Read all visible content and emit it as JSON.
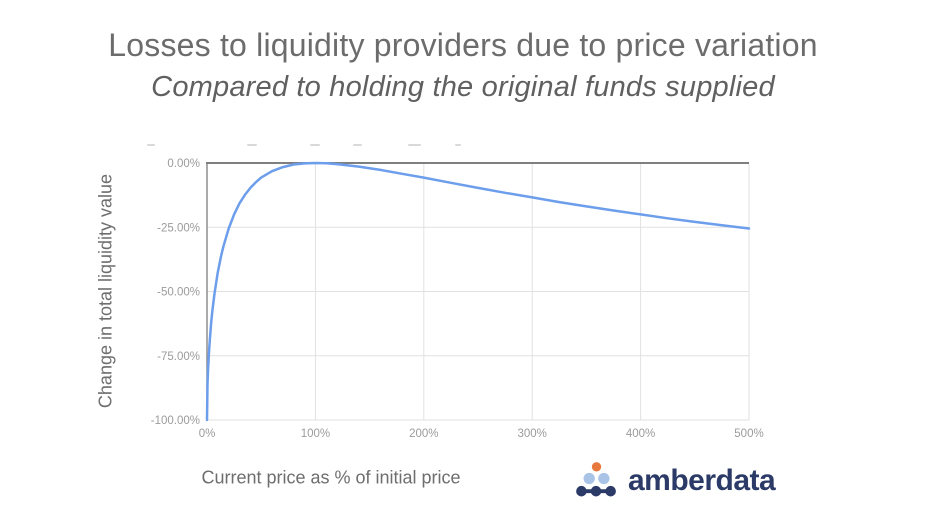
{
  "header": {
    "title": "Losses to liquidity providers due to price variation",
    "subtitle": "Compared to holding the original funds supplied"
  },
  "chart_data": {
    "type": "line",
    "title": "Losses to liquidity providers due to price variation",
    "xlabel": "Current price as % of initial price",
    "ylabel": "Change in total liquidity value",
    "xlim": [
      0,
      500
    ],
    "ylim": [
      -100,
      0
    ],
    "grid": true,
    "legend_position": "none",
    "x_ticks": [
      {
        "value": 0,
        "label": "0%"
      },
      {
        "value": 100,
        "label": "100%"
      },
      {
        "value": 200,
        "label": "200%"
      },
      {
        "value": 300,
        "label": "300%"
      },
      {
        "value": 400,
        "label": "400%"
      },
      {
        "value": 500,
        "label": "500%"
      }
    ],
    "y_ticks": [
      {
        "value": 0,
        "label": "0.00%"
      },
      {
        "value": -25,
        "label": "-25.00%"
      },
      {
        "value": -50,
        "label": "-50.00%"
      },
      {
        "value": -75,
        "label": "-75.00%"
      },
      {
        "value": -100,
        "label": "-100.00%"
      }
    ],
    "series": [
      {
        "name": "Change in total liquidity value",
        "color": "#6d9eeb",
        "points": [
          [
            0,
            -100
          ],
          [
            0.5,
            -85.9
          ],
          [
            1,
            -80.2
          ],
          [
            2,
            -72.3
          ],
          [
            3,
            -66.4
          ],
          [
            4,
            -61.5
          ],
          [
            5,
            -57.4
          ],
          [
            7,
            -50.5
          ],
          [
            10,
            -42.5
          ],
          [
            13,
            -36.2
          ],
          [
            15,
            -32.6
          ],
          [
            20,
            -25.5
          ],
          [
            25,
            -20.0
          ],
          [
            30,
            -15.7
          ],
          [
            35,
            -12.4
          ],
          [
            40,
            -9.7
          ],
          [
            45,
            -7.5
          ],
          [
            50,
            -5.7
          ],
          [
            60,
            -3.2
          ],
          [
            70,
            -1.6
          ],
          [
            80,
            -0.6
          ],
          [
            90,
            -0.14
          ],
          [
            100,
            0
          ],
          [
            110,
            -0.11
          ],
          [
            120,
            -0.41
          ],
          [
            140,
            -1.4
          ],
          [
            160,
            -2.7
          ],
          [
            180,
            -4.2
          ],
          [
            200,
            -5.7
          ],
          [
            225,
            -7.7
          ],
          [
            250,
            -9.7
          ],
          [
            275,
            -11.6
          ],
          [
            300,
            -13.4
          ],
          [
            325,
            -15.2
          ],
          [
            350,
            -16.9
          ],
          [
            375,
            -18.5
          ],
          [
            400,
            -20.0
          ],
          [
            425,
            -21.5
          ],
          [
            450,
            -22.9
          ],
          [
            475,
            -24.2
          ],
          [
            500,
            -25.5
          ]
        ]
      }
    ]
  },
  "branding": {
    "logo_text": "amberdata",
    "logo_colors": {
      "navy": "#2b3a66",
      "orange": "#e8793e",
      "light_blue": "#a9c3e6"
    }
  },
  "style": {
    "grid_color": "#e1e1e1",
    "axis_color": "#7f7f7f",
    "tick_label_color": "#9b9b9b",
    "axis_title_color": "#6e6e6e",
    "title_color": "#6c6c6c",
    "subtitle_color": "#606060"
  }
}
